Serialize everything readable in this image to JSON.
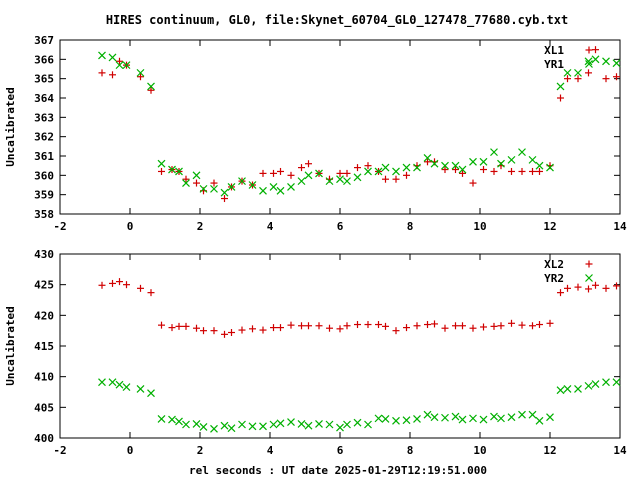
{
  "chart_data": [
    {
      "type": "scatter",
      "title": "HIRES continuum, GL0, file:Skynet_60704_GL0_127478_77680.cyb.txt",
      "xlabel": "",
      "ylabel": "Uncalibrated",
      "xlim": [
        -2,
        14
      ],
      "ylim": [
        358,
        367
      ],
      "xticks": [
        "-2",
        "0",
        "2",
        "4",
        "6",
        "8",
        "10",
        "12",
        "14"
      ],
      "yticks": [
        "358",
        "359",
        "360",
        "361",
        "362",
        "363",
        "364",
        "365",
        "366",
        "367"
      ],
      "legend_position": "top-right",
      "series": [
        {
          "name": "XL1",
          "color": "#d00000",
          "marker": "plus",
          "x": [
            -0.8,
            -0.5,
            -0.3,
            -0.1,
            0.3,
            0.6,
            0.9,
            1.2,
            1.4,
            1.6,
            1.9,
            2.1,
            2.4,
            2.7,
            2.9,
            3.2,
            3.5,
            3.8,
            4.1,
            4.3,
            4.6,
            4.9,
            5.1,
            5.4,
            5.7,
            6.0,
            6.2,
            6.5,
            6.8,
            7.1,
            7.3,
            7.6,
            7.9,
            8.2,
            8.5,
            8.7,
            9.0,
            9.3,
            9.5,
            9.8,
            10.1,
            10.4,
            10.6,
            10.9,
            11.2,
            11.5,
            11.7,
            12.0,
            12.3,
            12.5,
            12.8,
            13.1,
            13.3,
            13.6,
            13.9
          ],
          "y": [
            365.3,
            365.2,
            365.9,
            365.7,
            365.1,
            364.4,
            360.2,
            360.3,
            360.2,
            359.8,
            359.6,
            359.2,
            359.6,
            358.8,
            359.4,
            359.7,
            359.5,
            360.1,
            360.1,
            360.2,
            360.0,
            360.4,
            360.6,
            360.1,
            359.8,
            360.1,
            360.1,
            360.4,
            360.5,
            360.2,
            359.8,
            359.8,
            360.0,
            360.5,
            360.7,
            360.7,
            360.3,
            360.3,
            360.1,
            359.6,
            360.3,
            360.2,
            360.5,
            360.2,
            360.2,
            360.2,
            360.2,
            360.5,
            364.0,
            365.0,
            365.0,
            365.3,
            366.5,
            365.0,
            365.1
          ]
        },
        {
          "name": "YR1",
          "color": "#00b000",
          "marker": "cross",
          "x": [
            -0.8,
            -0.5,
            -0.3,
            -0.1,
            0.3,
            0.6,
            0.9,
            1.2,
            1.4,
            1.6,
            1.9,
            2.1,
            2.4,
            2.7,
            2.9,
            3.2,
            3.5,
            3.8,
            4.1,
            4.3,
            4.6,
            4.9,
            5.1,
            5.4,
            5.7,
            6.0,
            6.2,
            6.5,
            6.8,
            7.1,
            7.3,
            7.6,
            7.9,
            8.2,
            8.5,
            8.7,
            9.0,
            9.3,
            9.5,
            9.8,
            10.1,
            10.4,
            10.6,
            10.9,
            11.2,
            11.5,
            11.7,
            12.0,
            12.3,
            12.5,
            12.8,
            13.1,
            13.3,
            13.6,
            13.9
          ],
          "y": [
            366.2,
            366.1,
            365.7,
            365.7,
            365.3,
            364.6,
            360.6,
            360.3,
            360.2,
            359.6,
            360.0,
            359.3,
            359.3,
            359.1,
            359.4,
            359.7,
            359.5,
            359.2,
            359.4,
            359.2,
            359.4,
            359.7,
            360.0,
            360.1,
            359.7,
            359.8,
            359.7,
            359.9,
            360.2,
            360.2,
            360.4,
            360.2,
            360.4,
            360.4,
            360.9,
            360.6,
            360.5,
            360.5,
            360.3,
            360.7,
            360.7,
            361.2,
            360.6,
            360.8,
            361.2,
            360.8,
            360.5,
            360.4,
            364.6,
            365.3,
            365.3,
            365.9,
            366.0,
            365.9,
            365.8
          ]
        }
      ]
    },
    {
      "type": "scatter",
      "title": "",
      "xlabel": "rel seconds : UT date 2025-01-29T12:19:51.000",
      "ylabel": "Uncalibrated",
      "xlim": [
        -2,
        14
      ],
      "ylim": [
        400,
        430
      ],
      "xticks": [
        "-2",
        "0",
        "2",
        "4",
        "6",
        "8",
        "10",
        "12",
        "14"
      ],
      "yticks": [
        "400",
        "405",
        "410",
        "415",
        "420",
        "425",
        "430"
      ],
      "legend_position": "top-right",
      "series": [
        {
          "name": "XL2",
          "color": "#d00000",
          "marker": "plus",
          "x": [
            -0.8,
            -0.5,
            -0.3,
            -0.1,
            0.3,
            0.6,
            0.9,
            1.2,
            1.4,
            1.6,
            1.9,
            2.1,
            2.4,
            2.7,
            2.9,
            3.2,
            3.5,
            3.8,
            4.1,
            4.3,
            4.6,
            4.9,
            5.1,
            5.4,
            5.7,
            6.0,
            6.2,
            6.5,
            6.8,
            7.1,
            7.3,
            7.6,
            7.9,
            8.2,
            8.5,
            8.7,
            9.0,
            9.3,
            9.5,
            9.8,
            10.1,
            10.4,
            10.6,
            10.9,
            11.2,
            11.5,
            11.7,
            12.0,
            12.3,
            12.5,
            12.8,
            13.1,
            13.3,
            13.6,
            13.9
          ],
          "y": [
            424.9,
            425.2,
            425.5,
            425.0,
            424.4,
            423.7,
            418.4,
            418.0,
            418.2,
            418.2,
            417.9,
            417.5,
            417.5,
            416.9,
            417.2,
            417.6,
            417.8,
            417.6,
            418.0,
            418.0,
            418.4,
            418.3,
            418.3,
            418.3,
            417.9,
            417.8,
            418.3,
            418.5,
            418.5,
            418.5,
            418.2,
            417.5,
            418.0,
            418.3,
            418.5,
            418.6,
            417.9,
            418.3,
            418.3,
            417.9,
            418.1,
            418.2,
            418.3,
            418.7,
            418.4,
            418.3,
            418.5,
            418.7,
            423.7,
            424.4,
            424.6,
            424.3,
            424.9,
            424.4,
            424.8
          ]
        },
        {
          "name": "YR2",
          "color": "#00b000",
          "marker": "cross",
          "x": [
            -0.8,
            -0.5,
            -0.3,
            -0.1,
            0.3,
            0.6,
            0.9,
            1.2,
            1.4,
            1.6,
            1.9,
            2.1,
            2.4,
            2.7,
            2.9,
            3.2,
            3.5,
            3.8,
            4.1,
            4.3,
            4.6,
            4.9,
            5.1,
            5.4,
            5.7,
            6.0,
            6.2,
            6.5,
            6.8,
            7.1,
            7.3,
            7.6,
            7.9,
            8.2,
            8.5,
            8.7,
            9.0,
            9.3,
            9.5,
            9.8,
            10.1,
            10.4,
            10.6,
            10.9,
            11.2,
            11.5,
            11.7,
            12.0,
            12.3,
            12.5,
            12.8,
            13.1,
            13.3,
            13.6,
            13.9
          ],
          "y": [
            409.1,
            409.1,
            408.7,
            408.3,
            408.0,
            407.3,
            403.1,
            403.0,
            402.7,
            402.2,
            402.3,
            401.8,
            401.5,
            402.0,
            401.6,
            402.2,
            401.9,
            401.9,
            402.2,
            402.4,
            402.6,
            402.3,
            402.0,
            402.3,
            402.2,
            401.7,
            402.2,
            402.5,
            402.2,
            403.2,
            403.1,
            402.8,
            402.9,
            403.1,
            403.8,
            403.4,
            403.3,
            403.5,
            403.0,
            403.2,
            403.0,
            403.5,
            403.2,
            403.4,
            403.8,
            403.8,
            402.8,
            403.4,
            407.8,
            408.0,
            408.0,
            408.5,
            408.8,
            409.1,
            409.1
          ]
        }
      ]
    }
  ]
}
